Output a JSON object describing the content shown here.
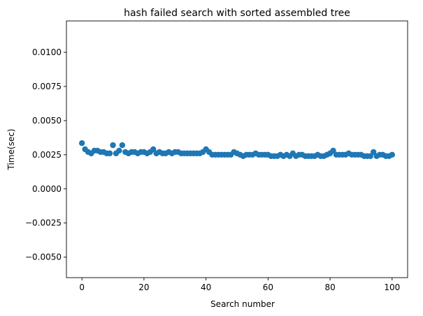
{
  "chart_data": {
    "type": "scatter",
    "title": "hash failed search with sorted assembled tree",
    "xlabel": "Search number",
    "ylabel": "Time(sec)",
    "xlim": [
      -5,
      105
    ],
    "ylim": [
      -0.0065,
      0.0123
    ],
    "xticks": [
      0,
      20,
      40,
      60,
      80,
      100
    ],
    "xtick_labels": [
      "0",
      "20",
      "40",
      "60",
      "80",
      "100"
    ],
    "yticks": [
      -0.005,
      -0.0025,
      0.0,
      0.0025,
      0.005,
      0.0075,
      0.01
    ],
    "ytick_labels": [
      "−0.0050",
      "−0.0025",
      "0.0000",
      "0.0025",
      "0.0050",
      "0.0075",
      "0.0100"
    ],
    "grid": false,
    "marker_color": "#1f77b4",
    "x": [
      0,
      1,
      2,
      3,
      4,
      5,
      6,
      7,
      8,
      9,
      10,
      11,
      12,
      13,
      14,
      15,
      16,
      17,
      18,
      19,
      20,
      21,
      22,
      23,
      24,
      25,
      26,
      27,
      28,
      29,
      30,
      31,
      32,
      33,
      34,
      35,
      36,
      37,
      38,
      39,
      40,
      41,
      42,
      43,
      44,
      45,
      46,
      47,
      48,
      49,
      50,
      51,
      52,
      53,
      54,
      55,
      56,
      57,
      58,
      59,
      60,
      61,
      62,
      63,
      64,
      65,
      66,
      67,
      68,
      69,
      70,
      71,
      72,
      73,
      74,
      75,
      76,
      77,
      78,
      79,
      80,
      81,
      82,
      83,
      84,
      85,
      86,
      87,
      88,
      89,
      90,
      91,
      92,
      93,
      94,
      95,
      96,
      97,
      98,
      99,
      100
    ],
    "y": [
      0.00335,
      0.0029,
      0.0027,
      0.0026,
      0.0028,
      0.0028,
      0.0027,
      0.0027,
      0.0026,
      0.0026,
      0.0032,
      0.0026,
      0.0028,
      0.0032,
      0.0027,
      0.0026,
      0.0027,
      0.0027,
      0.0026,
      0.0027,
      0.0027,
      0.0026,
      0.0027,
      0.0029,
      0.0026,
      0.0027,
      0.0026,
      0.0026,
      0.0027,
      0.0026,
      0.0027,
      0.0027,
      0.0026,
      0.0026,
      0.0026,
      0.0026,
      0.0026,
      0.0026,
      0.0026,
      0.0027,
      0.0029,
      0.0027,
      0.0025,
      0.0025,
      0.0025,
      0.0025,
      0.0025,
      0.0025,
      0.0025,
      0.0027,
      0.0026,
      0.0025,
      0.0024,
      0.0025,
      0.0025,
      0.0025,
      0.0026,
      0.0025,
      0.0025,
      0.0025,
      0.0025,
      0.0024,
      0.0024,
      0.0024,
      0.0025,
      0.0024,
      0.0025,
      0.0024,
      0.0026,
      0.0024,
      0.0025,
      0.0025,
      0.0024,
      0.0024,
      0.0024,
      0.0024,
      0.0025,
      0.0024,
      0.0024,
      0.0025,
      0.0026,
      0.0028,
      0.0025,
      0.0025,
      0.0025,
      0.0025,
      0.0026,
      0.0025,
      0.0025,
      0.0025,
      0.0025,
      0.0024,
      0.0024,
      0.0024,
      0.0027,
      0.0024,
      0.0025,
      0.0025,
      0.0024,
      0.0024,
      0.0025
    ]
  }
}
